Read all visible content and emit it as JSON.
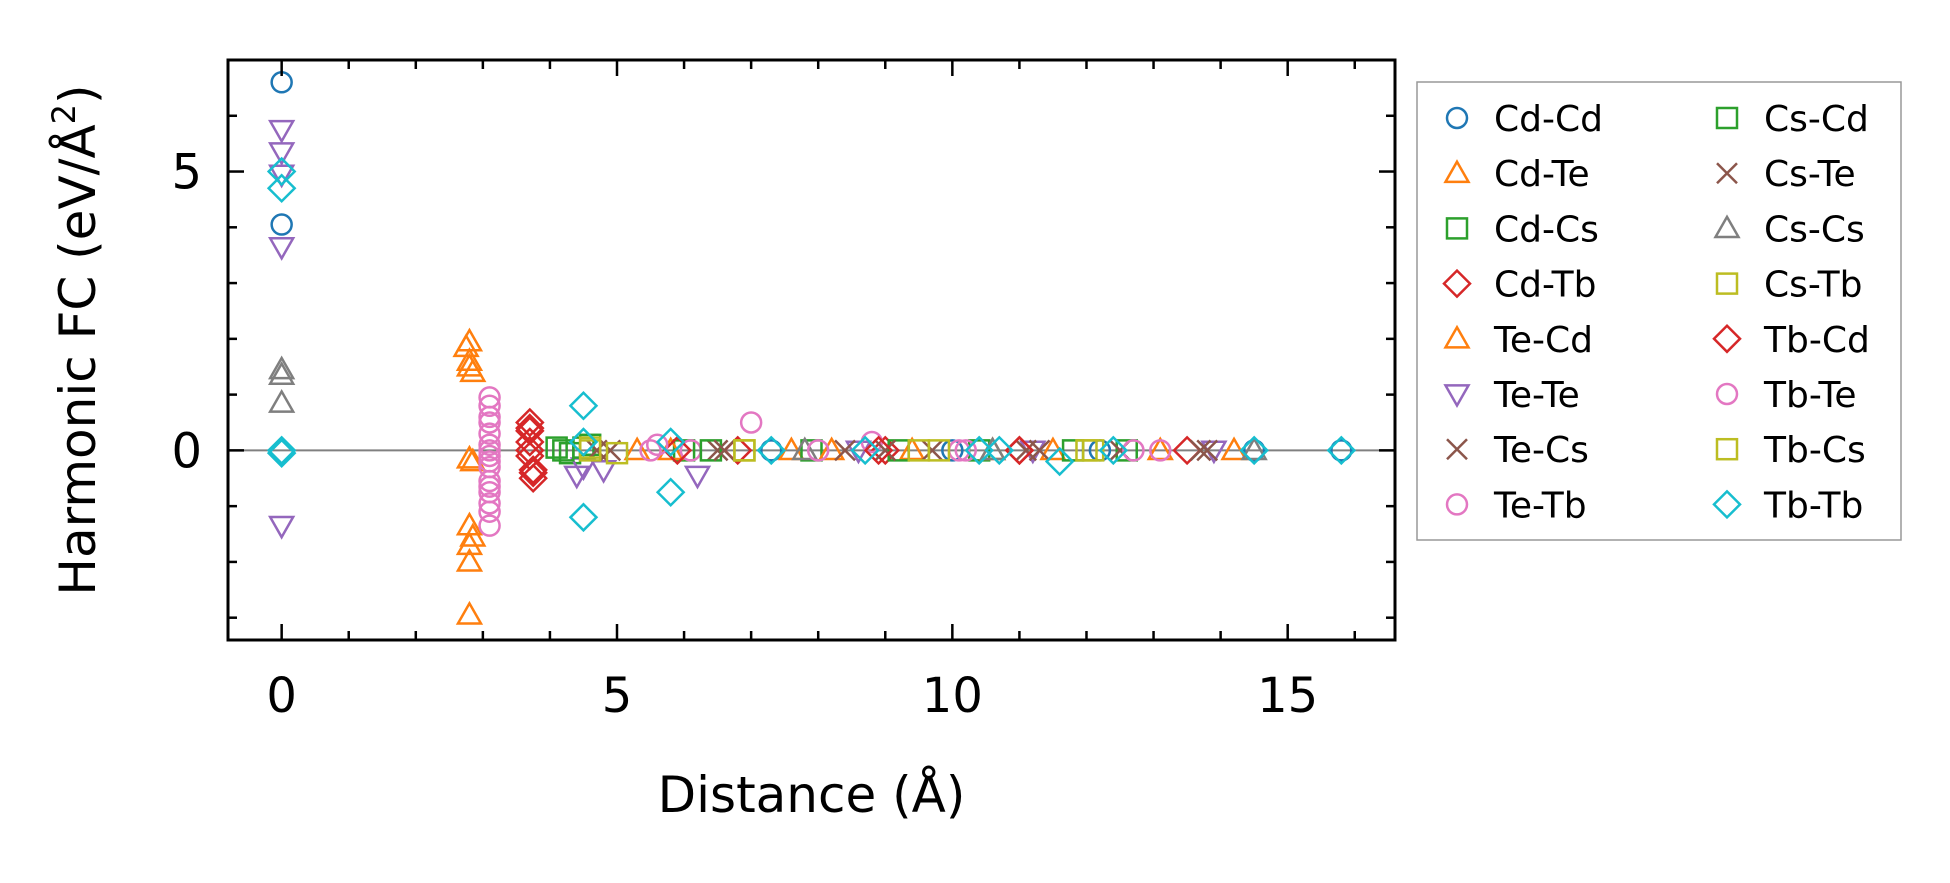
{
  "chart_data": {
    "type": "scatter",
    "title": "",
    "xlabel": "Distance (Å)",
    "ylabel_main": "Harmonic FC (eV/Å",
    "ylabel_sup": "2",
    "ylabel_end": ")",
    "xlim": [
      -0.8,
      16.6
    ],
    "ylim": [
      -3.4,
      7.0
    ],
    "xticks": [
      0,
      5,
      10,
      15
    ],
    "yticks": [
      0,
      5
    ],
    "zero_line": true,
    "grid": false,
    "legend_position": "outside-right",
    "series": [
      {
        "name": "Cd-Cd",
        "marker": "circle",
        "color": "#1f77b4",
        "x": [
          0,
          0,
          7.3,
          10.0,
          12.2,
          14.5,
          15.8
        ],
        "y": [
          6.6,
          4.05,
          0.0,
          0.0,
          0.0,
          0.0,
          0.0
        ]
      },
      {
        "name": "Cd-Te",
        "marker": "triangle-up",
        "color": "#ff7f0e",
        "x": [
          2.8,
          2.8,
          2.85,
          2.8,
          2.8,
          2.85,
          2.8,
          2.8,
          5.3,
          7.6,
          9.4,
          11.5,
          14.2
        ],
        "y": [
          1.95,
          1.6,
          1.4,
          -0.15,
          -1.35,
          -1.55,
          -2.0,
          -2.95,
          0.0,
          0.0,
          0.0,
          0.0,
          0.0
        ]
      },
      {
        "name": "Cd-Cs",
        "marker": "square",
        "color": "#2ca02c",
        "x": [
          4.1,
          4.3,
          4.6,
          6.0,
          7.9,
          10.4,
          12.6
        ],
        "y": [
          0.05,
          -0.05,
          0.1,
          0.0,
          0.0,
          0.0,
          0.0
        ]
      },
      {
        "name": "Cd-Tb",
        "marker": "diamond",
        "color": "#d62728",
        "x": [
          3.7,
          3.7,
          3.7,
          3.7,
          3.75,
          3.75,
          6.8,
          9.0,
          11.0,
          13.5
        ],
        "y": [
          0.5,
          0.35,
          0.15,
          -0.1,
          -0.35,
          -0.5,
          0.0,
          0.0,
          0.0,
          0.0
        ]
      },
      {
        "name": "Te-Cd",
        "marker": "triangle-up",
        "color": "#ff7f0e",
        "x": [
          2.75,
          2.8,
          2.85,
          2.8,
          5.8,
          8.2,
          10.6,
          13.1
        ],
        "y": [
          1.85,
          1.5,
          -0.2,
          -1.7,
          0.0,
          0.0,
          0.0,
          0.0
        ]
      },
      {
        "name": "Te-Te",
        "marker": "triangle-down",
        "color": "#9467bd",
        "x": [
          0,
          0,
          0,
          0,
          0,
          4.4,
          4.5,
          4.8,
          6.2,
          8.6,
          11.2,
          13.9
        ],
        "y": [
          5.75,
          5.35,
          4.95,
          3.65,
          -1.35,
          -0.45,
          -0.3,
          -0.35,
          -0.45,
          0.0,
          0.0,
          0.0
        ]
      },
      {
        "name": "Te-Cs",
        "marker": "x",
        "color": "#8c564b",
        "x": [
          4.9,
          6.5,
          8.4,
          9.7,
          11.1,
          12.5,
          13.8
        ],
        "y": [
          0.0,
          0.0,
          0.0,
          0.0,
          0.0,
          0.0,
          0.0
        ]
      },
      {
        "name": "Te-Tb",
        "marker": "circle",
        "color": "#e377c2",
        "x": [
          3.1,
          3.1,
          3.1,
          3.1,
          3.1,
          3.1,
          3.1,
          3.1,
          3.1,
          3.1,
          3.1,
          3.1,
          3.1,
          5.5,
          6.1,
          7.0,
          8.8,
          10.1,
          13.1
        ],
        "y": [
          0.95,
          0.8,
          0.6,
          0.3,
          0.1,
          0.0,
          -0.1,
          -0.3,
          -0.55,
          -0.75,
          -0.95,
          -1.1,
          -1.35,
          0.0,
          0.0,
          0.5,
          0.15,
          0.0,
          0.0
        ]
      },
      {
        "name": "Cs-Cd",
        "marker": "square",
        "color": "#2ca02c",
        "x": [
          4.2,
          4.5,
          6.4,
          9.2,
          11.8
        ],
        "y": [
          0.0,
          0.05,
          0.0,
          0.0,
          0.0
        ]
      },
      {
        "name": "Cs-Te",
        "marker": "x",
        "color": "#8c564b",
        "x": [
          4.7,
          6.6,
          9.0,
          11.3,
          13.7
        ],
        "y": [
          0.0,
          0.0,
          0.0,
          0.0,
          0.0
        ]
      },
      {
        "name": "Cs-Cs",
        "marker": "triangle-up",
        "color": "#7f7f7f",
        "x": [
          0,
          0,
          0,
          7.8,
          10.6,
          14.5
        ],
        "y": [
          1.45,
          1.35,
          0.85,
          0.0,
          0.0,
          0.0
        ]
      },
      {
        "name": "Cs-Tb",
        "marker": "square",
        "color": "#bcbd22",
        "x": [
          4.6,
          5.0,
          6.9,
          9.8,
          12.1
        ],
        "y": [
          0.0,
          -0.05,
          0.0,
          0.0,
          0.0
        ]
      },
      {
        "name": "Tb-Cd",
        "marker": "diamond",
        "color": "#d62728",
        "x": [
          3.7,
          3.7,
          3.75,
          5.9,
          8.9,
          11.0
        ],
        "y": [
          0.4,
          0.0,
          -0.4,
          0.0,
          0.0,
          0.0
        ]
      },
      {
        "name": "Tb-Te",
        "marker": "circle",
        "color": "#e377c2",
        "x": [
          3.1,
          3.1,
          3.1,
          5.6,
          8.0,
          10.2,
          12.7
        ],
        "y": [
          0.5,
          -0.2,
          -0.65,
          0.1,
          0.0,
          0.0,
          0.0
        ]
      },
      {
        "name": "Tb-Cs",
        "marker": "square",
        "color": "#bcbd22",
        "x": [
          4.6,
          6.9,
          9.5,
          12.0
        ],
        "y": [
          0.05,
          0.0,
          0.0,
          0.0
        ]
      },
      {
        "name": "Tb-Tb",
        "marker": "diamond",
        "color": "#17becf",
        "x": [
          0,
          0,
          0,
          0,
          4.5,
          4.5,
          4.5,
          5.8,
          5.8,
          7.3,
          8.7,
          10.4,
          10.7,
          11.6,
          12.4,
          14.5,
          15.8
        ],
        "y": [
          5.0,
          4.7,
          0.0,
          -0.05,
          0.8,
          0.15,
          -1.2,
          0.15,
          -0.75,
          0.0,
          0.0,
          0.0,
          0.0,
          -0.2,
          0.0,
          0.0,
          0.0
        ]
      }
    ]
  }
}
